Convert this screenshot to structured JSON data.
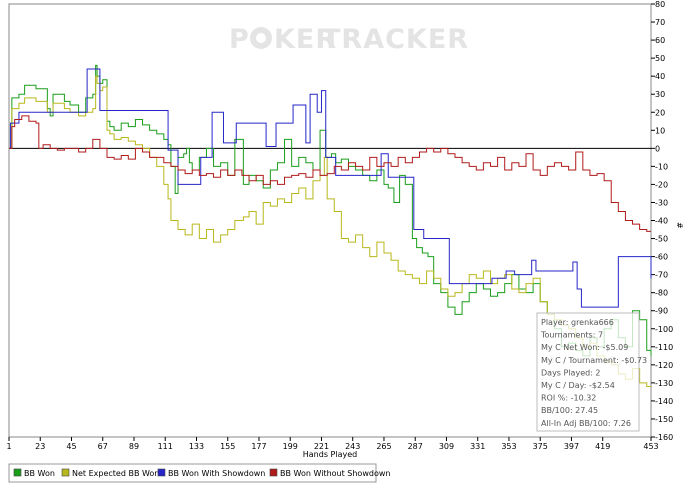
{
  "watermark": {
    "part1": "P",
    "part2": "KER",
    "part3": "TRACKER"
  },
  "chart_data": {
    "type": "line",
    "xlabel": "Hands Played",
    "ylabel": "#",
    "x_ticks": [
      1,
      23,
      45,
      67,
      89,
      111,
      133,
      155,
      177,
      199,
      221,
      243,
      265,
      287,
      309,
      331,
      353,
      375,
      397,
      419,
      453
    ],
    "xlim": [
      1,
      453
    ],
    "ylim": [
      -160,
      80
    ],
    "y_ticks": [
      80,
      70,
      60,
      50,
      40,
      30,
      20,
      10,
      0,
      -10,
      -20,
      -30,
      -40,
      -50,
      -60,
      -70,
      -80,
      -90,
      -100,
      -110,
      -120,
      -130,
      -140,
      -150,
      -160
    ],
    "series": [
      {
        "name": "BB Won",
        "color": "#1a9e1a",
        "x": [
          1,
          3,
          8,
          12,
          20,
          28,
          30,
          32,
          40,
          44,
          50,
          55,
          60,
          62,
          63,
          65,
          67,
          70,
          72,
          75,
          80,
          85,
          90,
          95,
          100,
          105,
          110,
          113,
          115,
          118,
          120,
          124,
          126,
          128,
          130,
          135,
          140,
          145,
          150,
          155,
          160,
          166,
          170,
          175,
          180,
          185,
          190,
          195,
          200,
          205,
          210,
          215,
          220,
          224,
          228,
          231,
          235,
          240,
          245,
          250,
          255,
          260,
          265,
          268,
          272,
          276,
          280,
          285,
          288,
          292,
          296,
          300,
          305,
          310,
          315,
          320,
          325,
          330,
          335,
          340,
          345,
          350,
          355,
          360,
          365,
          370,
          375,
          380,
          385,
          390,
          395,
          400,
          405,
          410,
          415,
          420,
          425,
          430,
          435,
          440,
          445,
          450,
          453
        ],
        "y": [
          0,
          28,
          30,
          35,
          33,
          22,
          18,
          30,
          26,
          24,
          20,
          28,
          30,
          46,
          40,
          36,
          38,
          15,
          12,
          10,
          14,
          12,
          16,
          13,
          10,
          8,
          5,
          2,
          -10,
          -25,
          -5,
          -3,
          0,
          -8,
          -12,
          -5,
          0,
          -10,
          -8,
          -15,
          5,
          -20,
          -15,
          -18,
          -22,
          -12,
          -8,
          5,
          -10,
          -5,
          -8,
          -12,
          10,
          -5,
          -3,
          -8,
          -6,
          -10,
          -12,
          -15,
          -18,
          -12,
          -20,
          -22,
          -30,
          -15,
          -20,
          -50,
          -55,
          -58,
          -60,
          -75,
          -80,
          -88,
          -92,
          -85,
          -80,
          -75,
          -78,
          -82,
          -80,
          -75,
          -70,
          -78,
          -80,
          -75,
          -85,
          -92,
          -100,
          -110,
          -108,
          -112,
          -115,
          -105,
          -110,
          -100,
          -95,
          -105,
          -110,
          -90,
          -95,
          -112,
          -115
        ]
      },
      {
        "name": "Net Expected BB Won",
        "color": "#b8b81c",
        "x": [
          1,
          3,
          8,
          12,
          20,
          28,
          32,
          40,
          44,
          50,
          55,
          60,
          62,
          63,
          65,
          67,
          70,
          72,
          75,
          80,
          85,
          90,
          95,
          100,
          105,
          110,
          113,
          115,
          120,
          125,
          130,
          135,
          140,
          145,
          150,
          155,
          160,
          166,
          170,
          175,
          180,
          185,
          190,
          195,
          200,
          205,
          210,
          215,
          220,
          223,
          225,
          230,
          235,
          240,
          245,
          250,
          255,
          260,
          265,
          270,
          275,
          280,
          285,
          290,
          295,
          300,
          305,
          310,
          315,
          320,
          325,
          330,
          335,
          340,
          345,
          350,
          355,
          360,
          365,
          370,
          375,
          380,
          385,
          390,
          395,
          400,
          405,
          410,
          415,
          420,
          425,
          430,
          435,
          440,
          445,
          450,
          453
        ],
        "y": [
          0,
          22,
          25,
          28,
          26,
          20,
          25,
          22,
          20,
          18,
          20,
          22,
          40,
          36,
          32,
          34,
          10,
          8,
          5,
          6,
          4,
          2,
          0,
          -5,
          -10,
          -20,
          -28,
          -40,
          -45,
          -48,
          -42,
          -50,
          -45,
          -52,
          -48,
          -45,
          -40,
          -38,
          -35,
          -42,
          -30,
          -32,
          -28,
          -30,
          -25,
          -22,
          -28,
          -18,
          -15,
          -5,
          -28,
          -35,
          -50,
          -52,
          -48,
          -55,
          -60,
          -52,
          -58,
          -62,
          -68,
          -70,
          -72,
          -75,
          -68,
          -72,
          -78,
          -82,
          -80,
          -75,
          -70,
          -72,
          -68,
          -75,
          -72,
          -70,
          -78,
          -80,
          -75,
          -72,
          -85,
          -92,
          -95,
          -98,
          -100,
          -105,
          -110,
          -108,
          -115,
          -118,
          -120,
          -125,
          -128,
          -122,
          -130,
          -132,
          -132
        ]
      },
      {
        "name": "BB Won With Showdown",
        "color": "#2626c8",
        "x": [
          1,
          2,
          5,
          8,
          10,
          55,
          56,
          64,
          65,
          70,
          71,
          100,
          101,
          112,
          113,
          119,
          120,
          135,
          136,
          143,
          144,
          151,
          152,
          160,
          161,
          181,
          182,
          188,
          189,
          200,
          201,
          209,
          210,
          212,
          213,
          217,
          218,
          220,
          221,
          223,
          224,
          230,
          231,
          262,
          263,
          267,
          268,
          285,
          286,
          292,
          293,
          310,
          311,
          330,
          331,
          340,
          341,
          350,
          351,
          356,
          357,
          368,
          369,
          371,
          372,
          397,
          398,
          400,
          401,
          403,
          404,
          429,
          430,
          452,
          453
        ],
        "y": [
          0,
          14,
          14,
          20,
          20,
          20,
          44,
          44,
          21,
          21,
          21,
          21,
          21,
          21,
          -1,
          -1,
          -20,
          -20,
          -5,
          -5,
          20,
          20,
          3,
          3,
          14,
          14,
          1,
          1,
          14,
          14,
          24,
          24,
          3,
          3,
          30,
          30,
          20,
          20,
          32,
          32,
          -5,
          -5,
          -15,
          -15,
          -3,
          -3,
          -16,
          -16,
          -45,
          -45,
          -50,
          -50,
          -75,
          -75,
          -75,
          -75,
          -72,
          -72,
          -68,
          -68,
          -70,
          -70,
          -62,
          -62,
          -68,
          -68,
          -63,
          -63,
          -78,
          -78,
          -88,
          -88,
          -60,
          -60,
          -72
        ]
      },
      {
        "name": "BB Won Without Showdown",
        "color": "#b01a1a",
        "x": [
          1,
          3,
          5,
          10,
          15,
          20,
          22,
          25,
          30,
          35,
          40,
          45,
          50,
          55,
          60,
          65,
          70,
          75,
          80,
          85,
          90,
          95,
          100,
          105,
          110,
          115,
          120,
          125,
          130,
          135,
          140,
          145,
          150,
          155,
          160,
          165,
          170,
          175,
          180,
          185,
          190,
          195,
          200,
          205,
          210,
          215,
          220,
          225,
          230,
          235,
          240,
          245,
          250,
          255,
          260,
          265,
          270,
          275,
          280,
          285,
          290,
          295,
          300,
          305,
          310,
          315,
          320,
          325,
          330,
          335,
          340,
          345,
          350,
          355,
          360,
          365,
          370,
          375,
          380,
          385,
          390,
          395,
          400,
          405,
          410,
          415,
          420,
          425,
          430,
          435,
          440,
          445,
          450,
          453
        ],
        "y": [
          0,
          12,
          16,
          18,
          15,
          14,
          0,
          2,
          0,
          -1,
          0,
          0,
          -2,
          0,
          5,
          0,
          -5,
          -6,
          -4,
          -6,
          0,
          -2,
          -5,
          -5,
          -8,
          -10,
          -12,
          -14,
          -12,
          -15,
          -14,
          -16,
          -12,
          -15,
          -12,
          -15,
          -18,
          -15,
          -20,
          -18,
          -20,
          -16,
          -15,
          -14,
          -16,
          -12,
          -15,
          -14,
          -10,
          -12,
          -8,
          -10,
          -12,
          -5,
          -10,
          -8,
          -10,
          -5,
          -8,
          -5,
          -2,
          0,
          -2,
          0,
          -3,
          -5,
          -8,
          -10,
          -12,
          -8,
          -10,
          -5,
          -12,
          -8,
          -10,
          -3,
          -12,
          -15,
          -10,
          -8,
          -10,
          -12,
          -2,
          -12,
          -15,
          -14,
          -18,
          -30,
          -35,
          -40,
          -42,
          -45,
          -46,
          -46
        ]
      }
    ],
    "legend_placement": "bottom"
  },
  "info_box": {
    "lines": [
      "Player: grenka666",
      "Tournaments: 7",
      "My C Net Won: -$5.09",
      "My C / Tournament: -$0.73",
      "Days Played: 2",
      "My C / Day: -$2.54",
      "ROI %: -10.32",
      "BB/100: 27.45",
      "All-In Adj BB/100: 7.26"
    ]
  }
}
